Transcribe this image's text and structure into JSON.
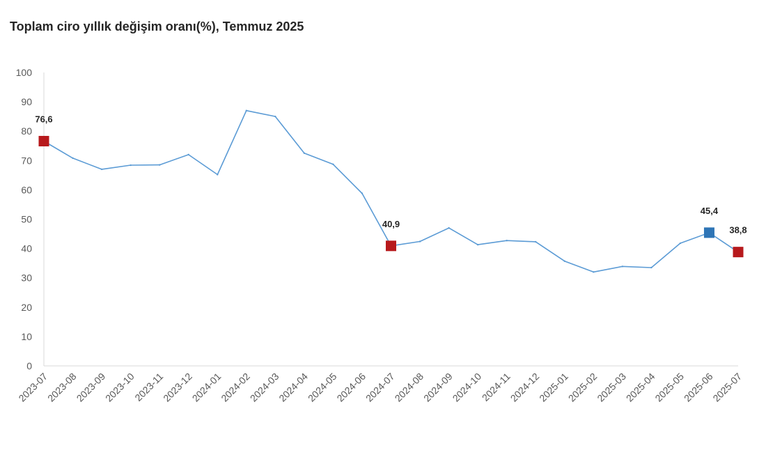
{
  "chart_data": {
    "type": "line",
    "title": "Toplam ciro yıllık değişim oranı(%), Temmuz 2025",
    "xlabel": "",
    "ylabel": "",
    "ylim": [
      0,
      100
    ],
    "y_ticks": [
      0,
      10,
      20,
      30,
      40,
      50,
      60,
      70,
      80,
      90,
      100
    ],
    "grid": false,
    "categories": [
      "2023-07",
      "2023-08",
      "2023-09",
      "2023-10",
      "2023-11",
      "2023-12",
      "2024-01",
      "2024-02",
      "2024-03",
      "2024-04",
      "2024-05",
      "2024-06",
      "2024-07",
      "2024-08",
      "2024-09",
      "2024-10",
      "2024-11",
      "2024-12",
      "2025-01",
      "2025-02",
      "2025-03",
      "2025-04",
      "2025-05",
      "2025-06",
      "2025-07"
    ],
    "series": [
      {
        "values": [
          76.6,
          70.8,
          67.0,
          68.4,
          68.5,
          72.0,
          65.2,
          87.0,
          85.0,
          72.5,
          68.7,
          58.8,
          40.9,
          42.4,
          47.0,
          41.3,
          42.7,
          42.3,
          35.7,
          32.0,
          33.9,
          33.5,
          41.8,
          45.4,
          38.8
        ],
        "color": "#5b9bd5"
      }
    ],
    "highlights": [
      {
        "category": "2023-07",
        "value": 76.6,
        "label": "76,6",
        "color": "#b7191c"
      },
      {
        "category": "2024-07",
        "value": 40.9,
        "label": "40,9",
        "color": "#b7191c"
      },
      {
        "category": "2025-06",
        "value": 45.4,
        "label": "45,4",
        "color": "#2e75b6"
      },
      {
        "category": "2025-07",
        "value": 38.8,
        "label": "38,8",
        "color": "#b7191c"
      }
    ],
    "colors": {
      "line": "#5b9bd5",
      "highlight_red": "#b7191c",
      "highlight_blue": "#2e75b6",
      "axis": "#d9d9d9"
    }
  }
}
